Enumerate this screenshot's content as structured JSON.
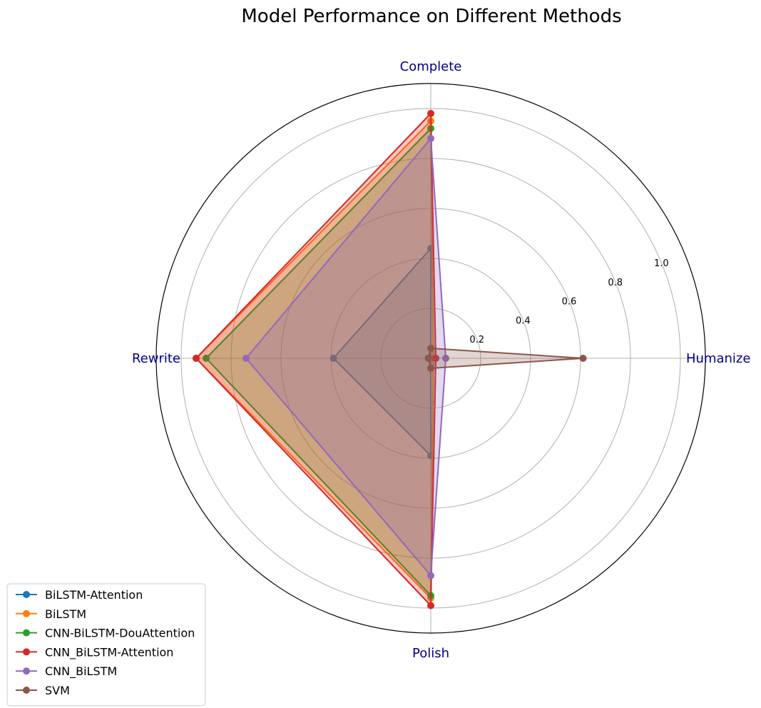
{
  "chart_data": {
    "type": "radar",
    "title": "Model Performance on Different Methods",
    "axes": [
      "Complete",
      "Humanize",
      "Polish",
      "Rewrite"
    ],
    "rlim": [
      0,
      1.1
    ],
    "rticks": [
      0.2,
      0.4,
      0.6,
      0.8,
      1.0
    ],
    "rtick_labels": [
      "0.2",
      "0.4",
      "0.6",
      "0.8",
      "1.0"
    ],
    "grid": true,
    "legend_position": "bottom-left",
    "series": [
      {
        "name": "BiLSTM-Attention",
        "color": "#1f77b4",
        "values": [
          0.44,
          0.0,
          0.39,
          0.39
        ]
      },
      {
        "name": "BiLSTM",
        "color": "#ff7f0e",
        "values": [
          0.95,
          0.01,
          0.96,
          0.94
        ]
      },
      {
        "name": "CNN-BiLSTM-DouAttention",
        "color": "#2ca02c",
        "values": [
          0.92,
          0.02,
          0.95,
          0.9
        ]
      },
      {
        "name": "CNN_BiLSTM-Attention",
        "color": "#d62728",
        "values": [
          0.98,
          0.02,
          0.99,
          0.94
        ]
      },
      {
        "name": "CNN_BiLSTM",
        "color": "#9467bd",
        "values": [
          0.88,
          0.06,
          0.87,
          0.74
        ]
      },
      {
        "name": "SVM",
        "color": "#8c564b",
        "values": [
          0.04,
          0.61,
          0.04,
          0.01
        ]
      }
    ]
  }
}
